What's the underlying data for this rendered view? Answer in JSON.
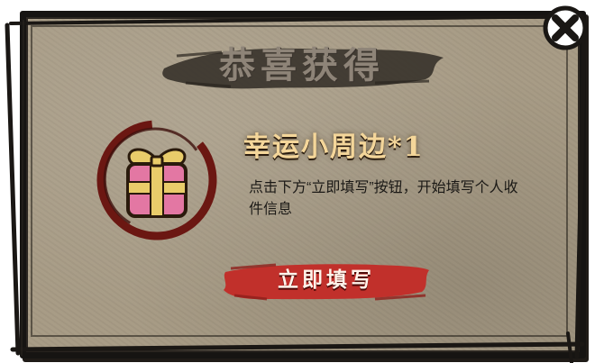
{
  "dialog": {
    "title": "恭喜获得",
    "reward_name": "幸运小周边*1",
    "description": "点击下方“立即填写”按钮，开始填写个人收件信息",
    "fill_button_label": "立即填写",
    "close_icon": "close-x-icon",
    "gift_icon": "gift-box-icon"
  },
  "colors": {
    "paper": "#a69a84",
    "frame": "#161412",
    "title_brush": "#3a342d",
    "title_text": "#8e8478",
    "reward_gold": "#f4d69a",
    "ring_red": "#6b1712",
    "gift_pink": "#e377a3",
    "gift_ribbon": "#e9cc6a",
    "button_red": "#c1302b",
    "button_text": "#fff3ea"
  }
}
